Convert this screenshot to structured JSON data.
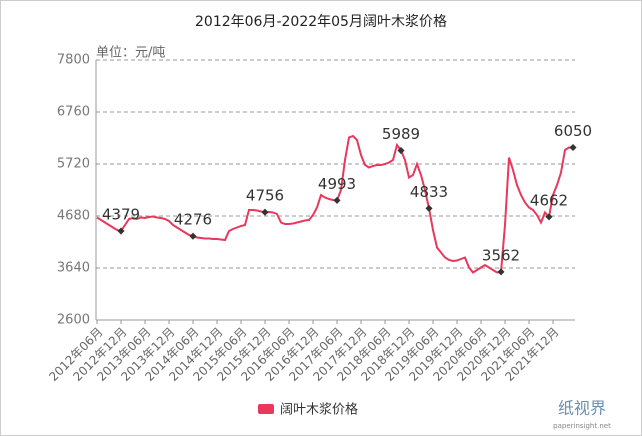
{
  "chart_data": {
    "type": "line",
    "title": "2012年06月-2022年05月阔叶木浆价格",
    "y_label": "单位：元/吨",
    "categories": [
      "2012年06月",
      null,
      null,
      null,
      null,
      null,
      "2012年12月",
      null,
      null,
      null,
      null,
      null,
      "2013年06月",
      null,
      null,
      null,
      null,
      null,
      "2013年12月",
      null,
      null,
      null,
      null,
      null,
      "2014年06月",
      null,
      null,
      null,
      null,
      null,
      "2014年12月",
      null,
      null,
      null,
      null,
      null,
      "2015年06月",
      null,
      null,
      null,
      null,
      null,
      "2015年12月",
      null,
      null,
      null,
      null,
      null,
      "2016年06月",
      null,
      null,
      null,
      null,
      null,
      "2016年12月",
      null,
      null,
      null,
      null,
      null,
      "2017年06月",
      null,
      null,
      null,
      null,
      null,
      "2017年12月",
      null,
      null,
      null,
      null,
      null,
      "2018年06月",
      null,
      null,
      null,
      null,
      null,
      "2018年12月",
      null,
      null,
      null,
      null,
      null,
      "2019年06月",
      null,
      null,
      null,
      null,
      null,
      "2019年12月",
      null,
      null,
      null,
      null,
      null,
      "2020年06月",
      null,
      null,
      null,
      null,
      null,
      "2020年12月",
      null,
      null,
      null,
      null,
      null,
      "2021年06月",
      null,
      null,
      null,
      null,
      null,
      "2021年12月",
      null,
      null,
      null,
      null,
      null
    ],
    "series": [
      {
        "name": "阔叶木浆价格",
        "color": "#e8385c",
        "values": [
          4650,
          4600,
          4550,
          4500,
          4450,
          4400,
          4379,
          4500,
          4620,
          4640,
          4620,
          4650,
          4640,
          4660,
          4670,
          4650,
          4640,
          4620,
          4580,
          4500,
          4450,
          4400,
          4350,
          4300,
          4276,
          4250,
          4240,
          4230,
          4230,
          4220,
          4220,
          4210,
          4200,
          4380,
          4420,
          4450,
          4480,
          4500,
          4800,
          4800,
          4790,
          4770,
          4756,
          4760,
          4750,
          4720,
          4550,
          4520,
          4520,
          4530,
          4550,
          4570,
          4590,
          4600,
          4700,
          4850,
          5100,
          5050,
          5020,
          5000,
          4993,
          5200,
          5800,
          6250,
          6280,
          6200,
          5900,
          5700,
          5650,
          5680,
          5700,
          5700,
          5720,
          5750,
          5800,
          6100,
          5989,
          5800,
          5450,
          5500,
          5720,
          5500,
          5200,
          4833,
          4400,
          4050,
          3950,
          3850,
          3800,
          3780,
          3790,
          3820,
          3850,
          3650,
          3550,
          3600,
          3650,
          3700,
          3650,
          3600,
          3550,
          3562,
          4500,
          5850,
          5600,
          5300,
          5100,
          4950,
          4850,
          4800,
          4700,
          4550,
          4750,
          4662,
          5100,
          5300,
          5550,
          6000,
          6050,
          6050
        ],
        "value_labels": [
          null,
          null,
          null,
          null,
          null,
          null,
          "4379",
          null,
          null,
          null,
          null,
          null,
          null,
          null,
          null,
          null,
          null,
          null,
          null,
          null,
          null,
          null,
          null,
          null,
          "4276",
          null,
          null,
          null,
          null,
          null,
          null,
          null,
          null,
          null,
          null,
          null,
          null,
          null,
          null,
          null,
          null,
          null,
          "4756",
          null,
          null,
          null,
          null,
          null,
          null,
          null,
          null,
          null,
          null,
          null,
          null,
          null,
          null,
          null,
          null,
          null,
          "4993",
          null,
          null,
          null,
          null,
          null,
          null,
          null,
          null,
          null,
          null,
          null,
          null,
          null,
          null,
          null,
          "5989",
          null,
          null,
          null,
          null,
          null,
          null,
          "4833",
          null,
          null,
          null,
          null,
          null,
          null,
          null,
          null,
          null,
          null,
          null,
          null,
          null,
          null,
          null,
          null,
          null,
          "3562",
          null,
          null,
          null,
          null,
          null,
          null,
          null,
          null,
          null,
          null,
          null,
          "4662",
          null,
          null,
          null,
          null,
          null,
          "6050"
        ]
      }
    ],
    "ylim": [
      2600,
      7800
    ],
    "yticks": [
      2600,
      3640,
      4680,
      5720,
      6760,
      7800
    ],
    "grid": true,
    "legend": "bottom"
  },
  "watermark": {
    "name": "纸视界",
    "url": "paperinsight.net"
  }
}
